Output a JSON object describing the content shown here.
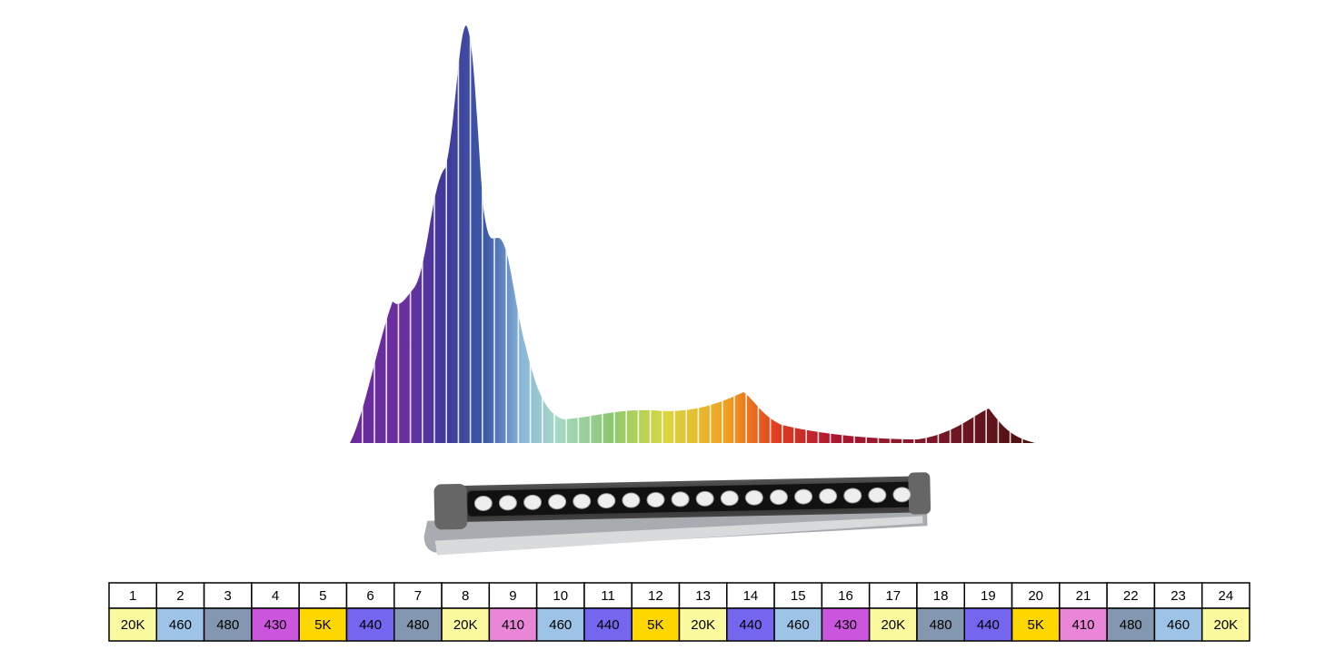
{
  "table": {
    "numbers": [
      1,
      2,
      3,
      4,
      5,
      6,
      7,
      8,
      9,
      10,
      11,
      12,
      13,
      14,
      15,
      16,
      17,
      18,
      19,
      20,
      21,
      22,
      23,
      24
    ],
    "types": [
      {
        "label": "20K",
        "color": "#fbfa9f"
      },
      {
        "label": "460",
        "color": "#9dc3e6"
      },
      {
        "label": "480",
        "color": "#8497b0"
      },
      {
        "label": "430",
        "color": "#cc55dd"
      },
      {
        "label": "5K",
        "color": "#ffd700"
      },
      {
        "label": "440",
        "color": "#7466ee"
      },
      {
        "label": "480",
        "color": "#8497b0"
      },
      {
        "label": "20K",
        "color": "#fbfa9f"
      },
      {
        "label": "410",
        "color": "#ea86d8"
      },
      {
        "label": "460",
        "color": "#9dc3e6"
      },
      {
        "label": "440",
        "color": "#7466ee"
      },
      {
        "label": "5K",
        "color": "#ffd700"
      },
      {
        "label": "20K",
        "color": "#fbfa9f"
      },
      {
        "label": "440",
        "color": "#7466ee"
      },
      {
        "label": "460",
        "color": "#9dc3e6"
      },
      {
        "label": "430",
        "color": "#cc55dd"
      },
      {
        "label": "20K",
        "color": "#fbfa9f"
      },
      {
        "label": "480",
        "color": "#8497b0"
      },
      {
        "label": "440",
        "color": "#7466ee"
      },
      {
        "label": "5K",
        "color": "#ffd700"
      },
      {
        "label": "410",
        "color": "#ea86d8"
      },
      {
        "label": "480",
        "color": "#8497b0"
      },
      {
        "label": "460",
        "color": "#9dc3e6"
      },
      {
        "label": "20K",
        "color": "#fbfa9f"
      }
    ]
  }
}
